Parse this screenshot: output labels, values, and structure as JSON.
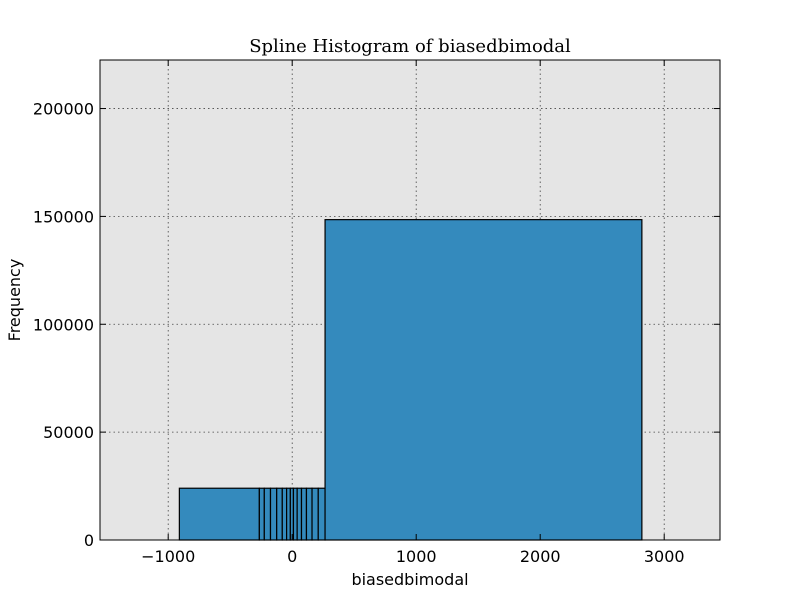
{
  "chart_data": {
    "type": "bar",
    "title": "Spline Histogram of biasedbimodal",
    "xlabel": "biasedbimodal",
    "ylabel": "Frequency",
    "xlim": [
      -1550,
      3450
    ],
    "ylim": [
      0,
      222500
    ],
    "x_ticks": [
      -1000,
      0,
      1000,
      2000,
      3000
    ],
    "x_tick_labels": [
      "−1000",
      "0",
      "1000",
      "2000",
      "3000"
    ],
    "y_ticks": [
      0,
      50000,
      100000,
      150000,
      200000
    ],
    "y_tick_labels": [
      "0",
      "50000",
      "100000",
      "150000",
      "200000"
    ],
    "grid": true,
    "background_color": "#e5e5e5",
    "bar_color": "#348abd",
    "bars": [
      {
        "x0": -910,
        "x1": -265,
        "value": 24000
      },
      {
        "x0": -265,
        "x1": -225,
        "value": 24000
      },
      {
        "x0": -225,
        "x1": -175,
        "value": 24000
      },
      {
        "x0": -175,
        "x1": -125,
        "value": 24000
      },
      {
        "x0": -125,
        "x1": -80,
        "value": 24000
      },
      {
        "x0": -80,
        "x1": -45,
        "value": 24000
      },
      {
        "x0": -45,
        "x1": -15,
        "value": 24000
      },
      {
        "x0": -15,
        "x1": 10,
        "value": 24000
      },
      {
        "x0": 10,
        "x1": 40,
        "value": 24000
      },
      {
        "x0": 40,
        "x1": 75,
        "value": 24000
      },
      {
        "x0": 75,
        "x1": 115,
        "value": 24000
      },
      {
        "x0": 115,
        "x1": 160,
        "value": 24000
      },
      {
        "x0": 160,
        "x1": 210,
        "value": 24000
      },
      {
        "x0": 210,
        "x1": 265,
        "value": 24000
      },
      {
        "x0": 265,
        "x1": 2820,
        "value": 148500
      }
    ]
  }
}
